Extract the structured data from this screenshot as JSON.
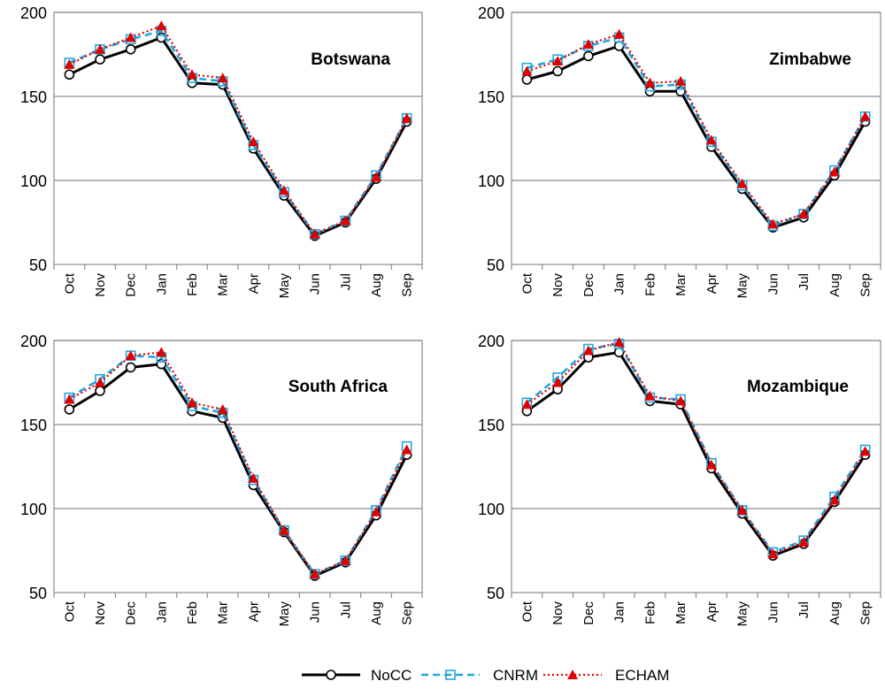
{
  "chart_data": [
    {
      "type": "line",
      "title": "Botswana",
      "categories": [
        "Oct",
        "Nov",
        "Dec",
        "Jan",
        "Feb",
        "Mar",
        "Apr",
        "May",
        "Jun",
        "Jul",
        "Aug",
        "Sep"
      ],
      "ylim": [
        50,
        200
      ],
      "yticks": [
        50,
        100,
        150,
        200
      ],
      "series": [
        {
          "name": "NoCC",
          "values": [
            163,
            172,
            178,
            185,
            158,
            157,
            119,
            91,
            67,
            75,
            101,
            135
          ]
        },
        {
          "name": "CNRM",
          "values": [
            170,
            178,
            184,
            189,
            161,
            159,
            121,
            93,
            68,
            76,
            103,
            137
          ]
        },
        {
          "name": "ECHAM",
          "values": [
            169,
            178,
            185,
            192,
            163,
            161,
            123,
            94,
            68,
            76,
            102,
            137
          ]
        }
      ]
    },
    {
      "type": "line",
      "title": "Zimbabwe",
      "categories": [
        "Oct",
        "Nov",
        "Dec",
        "Jan",
        "Feb",
        "Mar",
        "Apr",
        "May",
        "Jun",
        "Jul",
        "Aug",
        "Sep"
      ],
      "ylim": [
        50,
        200
      ],
      "yticks": [
        50,
        100,
        150,
        200
      ],
      "series": [
        {
          "name": "NoCC",
          "values": [
            160,
            165,
            174,
            180,
            153,
            153,
            120,
            95,
            72,
            78,
            103,
            135
          ]
        },
        {
          "name": "CNRM",
          "values": [
            167,
            172,
            180,
            185,
            156,
            157,
            123,
            97,
            73,
            80,
            106,
            138
          ]
        },
        {
          "name": "ECHAM",
          "values": [
            165,
            171,
            181,
            187,
            158,
            159,
            124,
            98,
            74,
            80,
            105,
            138
          ]
        }
      ]
    },
    {
      "type": "line",
      "title": "South Africa",
      "categories": [
        "Oct",
        "Nov",
        "Dec",
        "Jan",
        "Feb",
        "Mar",
        "Apr",
        "May",
        "Jun",
        "Jul",
        "Aug",
        "Sep"
      ],
      "ylim": [
        50,
        200
      ],
      "yticks": [
        50,
        100,
        150,
        200
      ],
      "series": [
        {
          "name": "NoCC",
          "values": [
            159,
            170,
            184,
            186,
            158,
            154,
            114,
            86,
            60,
            68,
            96,
            132
          ]
        },
        {
          "name": "CNRM",
          "values": [
            166,
            177,
            191,
            190,
            161,
            157,
            117,
            87,
            61,
            69,
            99,
            137
          ]
        },
        {
          "name": "ECHAM",
          "values": [
            165,
            175,
            191,
            193,
            163,
            159,
            118,
            87,
            61,
            69,
            98,
            135
          ]
        }
      ]
    },
    {
      "type": "line",
      "title": "Mozambique",
      "categories": [
        "Oct",
        "Nov",
        "Dec",
        "Jan",
        "Feb",
        "Mar",
        "Apr",
        "May",
        "Jun",
        "Jul",
        "Aug",
        "Sep"
      ],
      "ylim": [
        50,
        200
      ],
      "yticks": [
        50,
        100,
        150,
        200
      ],
      "series": [
        {
          "name": "NoCC",
          "values": [
            158,
            171,
            190,
            193,
            164,
            162,
            124,
            97,
            72,
            79,
            104,
            132
          ]
        },
        {
          "name": "CNRM",
          "values": [
            163,
            178,
            195,
            198,
            166,
            165,
            127,
            99,
            74,
            81,
            107,
            135
          ]
        },
        {
          "name": "ECHAM",
          "values": [
            162,
            175,
            194,
            199,
            167,
            164,
            126,
            99,
            73,
            80,
            105,
            134
          ]
        }
      ]
    }
  ],
  "legend": {
    "items": [
      {
        "name": "NoCC",
        "color": "#000000",
        "marker": "circle-open",
        "dash": "solid"
      },
      {
        "name": "CNRM",
        "color": "#1EA8E0",
        "marker": "square-open",
        "dash": "dashed"
      },
      {
        "name": "ECHAM",
        "color": "#E00000",
        "marker": "triangle-filled",
        "dash": "dotted"
      }
    ]
  },
  "colors": {
    "nocc": "#000000",
    "cnrm": "#1EA8E0",
    "echam": "#E00000",
    "gridline": "#8C8C8C",
    "plot_border": "#8C8C8C"
  }
}
